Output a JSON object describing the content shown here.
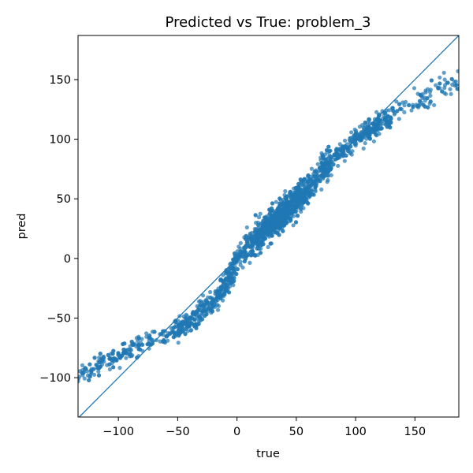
{
  "chart_data": {
    "type": "scatter",
    "title": "Predicted vs True: problem_3",
    "xlabel": "true",
    "ylabel": "pred",
    "xlim": [
      -134,
      187
    ],
    "ylim": [
      -133,
      187
    ],
    "xticks": [
      -100,
      -50,
      0,
      50,
      100,
      150
    ],
    "yticks": [
      -100,
      -50,
      0,
      50,
      100,
      150
    ],
    "xtick_labels": [
      "−100",
      "−50",
      "0",
      "50",
      "100",
      "150"
    ],
    "ytick_labels": [
      "−100",
      "−50",
      "0",
      "50",
      "100",
      "150"
    ],
    "reference_line": {
      "x": [
        -134,
        187
      ],
      "y": [
        -134,
        187
      ]
    },
    "series": [
      {
        "name": "predictions",
        "color": "#1f77b4",
        "trend_true": [
          -134,
          -120,
          -100,
          -80,
          -60,
          -40,
          -20,
          -5,
          0,
          10,
          25,
          40,
          55,
          70,
          85,
          100,
          120,
          140,
          160,
          187
        ],
        "trend_pred": [
          -98,
          -92,
          -82,
          -72,
          -63,
          -53,
          -37,
          -15,
          0,
          12,
          25,
          38,
          55,
          72,
          87,
          100,
          114,
          126,
          137,
          149
        ],
        "spread": 7,
        "point_count": 2200
      }
    ],
    "colors": {
      "points": "#1f77b4",
      "line": "#1f77b4",
      "axes": "#000000"
    }
  }
}
